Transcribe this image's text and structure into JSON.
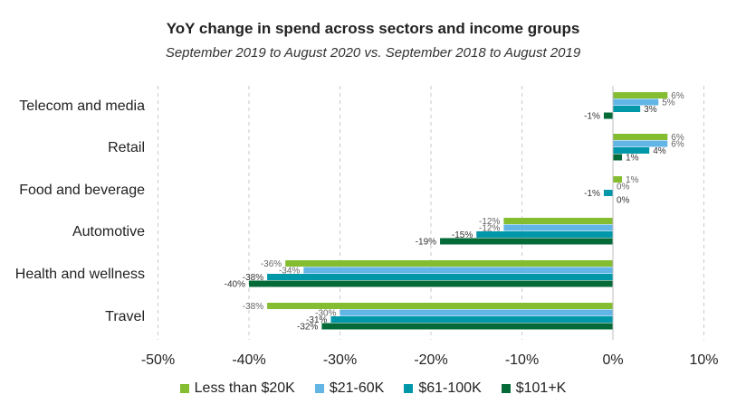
{
  "chart_data": {
    "type": "bar",
    "orientation": "horizontal",
    "title": "YoY change in spend across sectors and income groups",
    "subtitle": "September 2019 to August 2020 vs. September 2018 to August 2019",
    "categories": [
      "Telecom and media",
      "Retail",
      "Food and beverage",
      "Automotive",
      "Health and wellness",
      "Travel"
    ],
    "series": [
      {
        "name": "Less than $20K",
        "color": "#84bd2f",
        "values": [
          6,
          6,
          1,
          -12,
          -36,
          -38
        ]
      },
      {
        "name": "$21-60K",
        "color": "#62b5e5",
        "values": [
          5,
          6,
          0,
          -12,
          -34,
          -30
        ]
      },
      {
        "name": "$61-100K",
        "color": "#0097a9",
        "values": [
          3,
          4,
          -1,
          -15,
          -38,
          -31
        ]
      },
      {
        "name": "$101+K",
        "color": "#046a38",
        "values": [
          -1,
          1,
          0,
          -19,
          -40,
          -32
        ]
      }
    ],
    "labels": [
      [
        "6%",
        "5%",
        "3%",
        "-1%"
      ],
      [
        "6%",
        "6%",
        "4%",
        "1%"
      ],
      [
        "1%",
        "0%",
        "-1%",
        "0%"
      ],
      [
        "-12%",
        "-12%",
        "-15%",
        "-19%"
      ],
      [
        "-36%",
        "-34%",
        "-38%",
        "-40%"
      ],
      [
        "-38%",
        "-30%",
        "-31%",
        "-32%"
      ]
    ],
    "x_ticks": [
      "-50%",
      "-40%",
      "-30%",
      "-20%",
      "-10%",
      "0%",
      "10%"
    ],
    "xlim": [
      -50,
      10
    ],
    "grid": "vertical dashed",
    "legend_position": "bottom"
  }
}
